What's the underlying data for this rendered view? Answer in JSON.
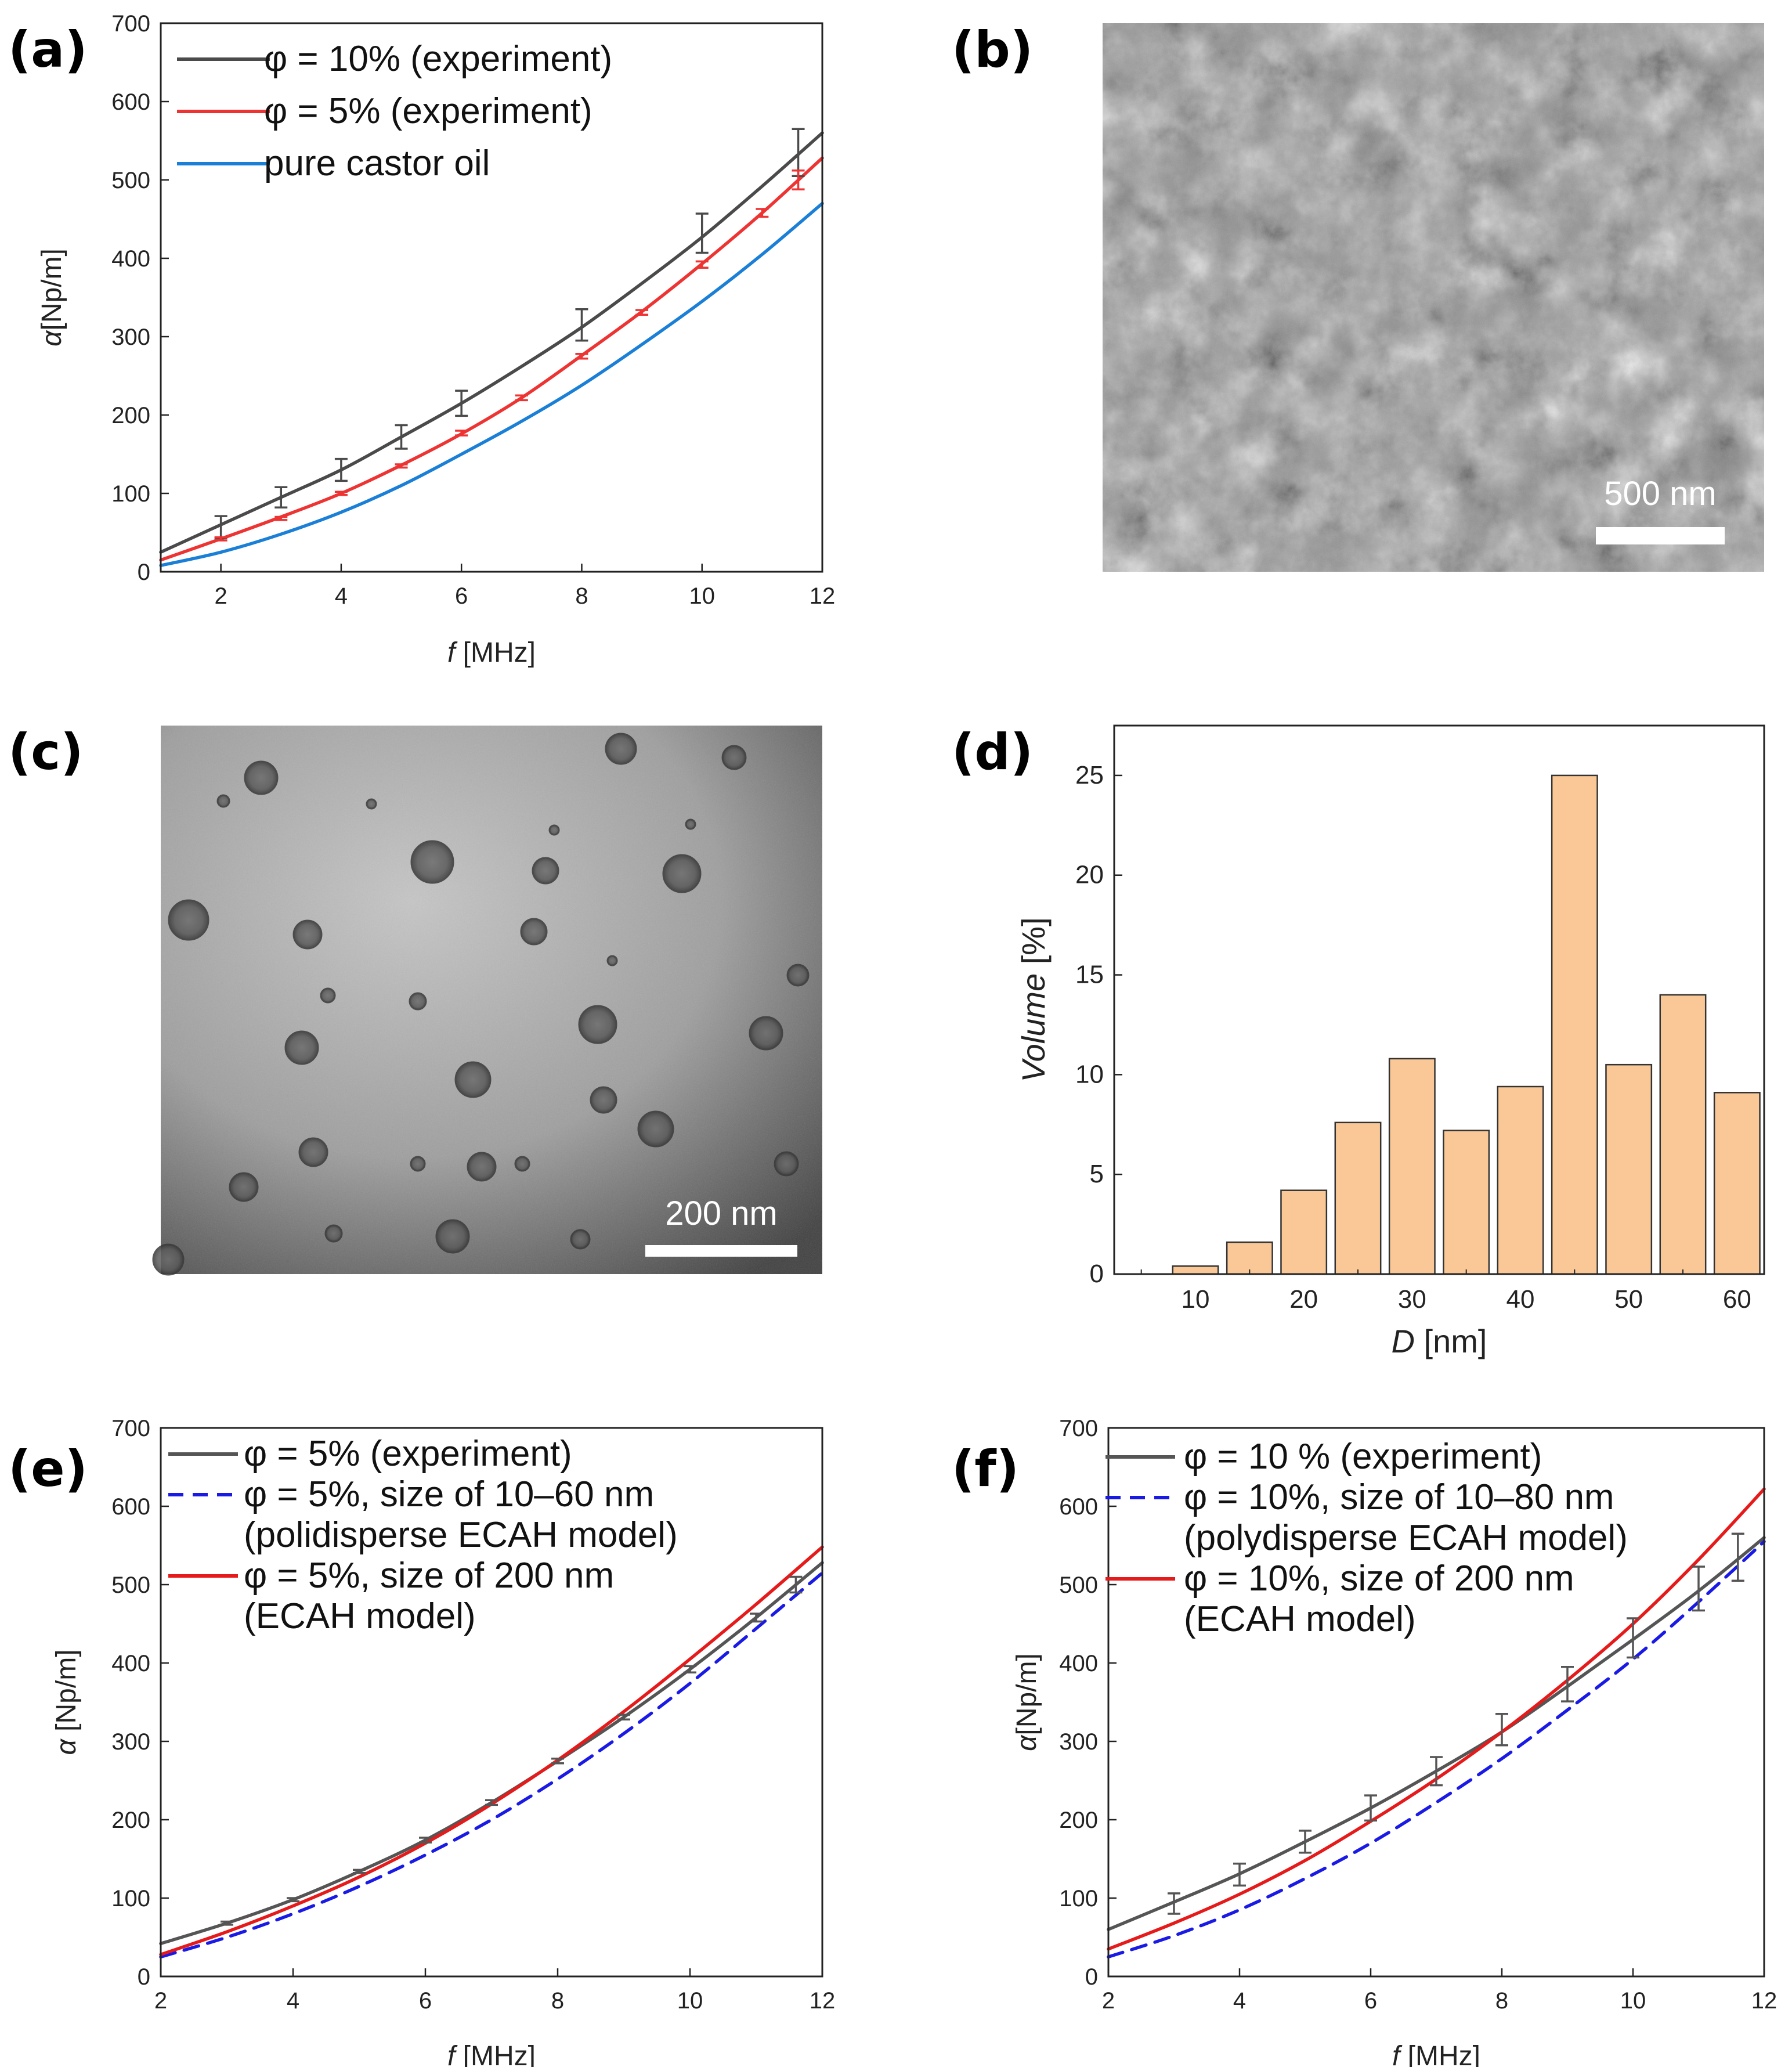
{
  "panel_labels": {
    "a": "(a)",
    "b": "(b)",
    "c": "(c)",
    "d": "(d)",
    "e": "(e)",
    "f": "(f)"
  },
  "images": {
    "b": {
      "scale_bar": "500 nm",
      "description_color": "#8a8a8a"
    },
    "c": {
      "scale_bar": "200 nm"
    }
  },
  "chart_data": [
    {
      "id": "a",
      "type": "line",
      "xlabel_italic": "f",
      "xlabel_rest": " [MHz]",
      "ylabel_italic": "α",
      "ylabel_rest": "[Np/m]",
      "xlim": [
        1,
        12
      ],
      "ylim": [
        0,
        700
      ],
      "xticks": [
        2,
        4,
        6,
        8,
        10,
        12
      ],
      "yticks": [
        0,
        100,
        200,
        300,
        400,
        500,
        600,
        700
      ],
      "legend": "top-left",
      "series": [
        {
          "name": "φ = 10% (experiment)",
          "color": "#4a4a4a",
          "dash": "",
          "marker": "line",
          "x": [
            1,
            2,
            3,
            4,
            5,
            6,
            7,
            8,
            9,
            10,
            11,
            12
          ],
          "y": [
            25,
            60,
            95,
            130,
            172,
            215,
            262,
            312,
            368,
            427,
            492,
            560
          ]
        },
        {
          "name": "φ = 5% (experiment)",
          "color": "#ee3333",
          "dash": "",
          "marker": "line",
          "x": [
            1,
            2,
            3,
            4,
            5,
            6,
            7,
            8,
            9,
            10,
            11,
            12
          ],
          "y": [
            15,
            42,
            70,
            100,
            136,
            176,
            222,
            276,
            332,
            393,
            458,
            528
          ]
        },
        {
          "name": "pure castor oil",
          "color": "#1a7fd6",
          "dash": "",
          "marker": "line",
          "x": [
            1,
            2,
            3,
            4,
            5,
            6,
            7,
            8,
            9,
            10,
            11,
            12
          ],
          "y": [
            8,
            25,
            48,
            76,
            110,
            150,
            192,
            238,
            290,
            345,
            405,
            470
          ]
        }
      ],
      "errorbars": [
        {
          "color": "#4a4a4a",
          "x": [
            2,
            3,
            4,
            5,
            6,
            8,
            10,
            11.6
          ],
          "y": [
            57,
            95,
            130,
            172,
            215,
            315,
            432,
            535
          ],
          "err": [
            14,
            13,
            14,
            15,
            16,
            20,
            25,
            30
          ]
        },
        {
          "color": "#ee3333",
          "x": [
            2,
            3,
            4,
            5,
            6,
            7,
            8,
            9,
            10,
            11,
            11.6
          ],
          "y": [
            42,
            68,
            100,
            135,
            177,
            222,
            275,
            331,
            392,
            458,
            500
          ],
          "err": [
            2,
            2,
            2,
            2,
            3,
            3,
            3,
            3,
            4,
            5,
            12
          ]
        }
      ]
    },
    {
      "id": "d",
      "type": "bar",
      "xlabel_italic": "D",
      "xlabel_rest": " [nm]",
      "ylabel_italic": "Volume",
      "ylabel_rest": " [%]",
      "xlim": [
        2.5,
        62.5
      ],
      "ylim": [
        0,
        27.5
      ],
      "xticks": [
        10,
        20,
        30,
        40,
        50,
        60
      ],
      "yticks": [
        0,
        5,
        10,
        15,
        20,
        25
      ],
      "bar_color": "#f9c896",
      "categories": [
        10,
        15,
        20,
        25,
        30,
        35,
        40,
        45,
        50,
        55,
        60
      ],
      "values": [
        0.4,
        1.6,
        4.2,
        7.6,
        10.8,
        7.2,
        9.4,
        25.0,
        10.5,
        14.0,
        9.1
      ]
    },
    {
      "id": "e",
      "type": "line",
      "xlabel_italic": "f",
      "xlabel_rest": " [MHz]",
      "ylabel_italic": "α",
      "ylabel_rest": " [Np/m]",
      "xlim": [
        2,
        12
      ],
      "ylim": [
        0,
        700
      ],
      "xticks": [
        2,
        4,
        6,
        8,
        10,
        12
      ],
      "yticks": [
        0,
        100,
        200,
        300,
        400,
        500,
        600,
        700
      ],
      "legend": "top-left",
      "legend_items": [
        {
          "text": "φ = 5% (experiment)",
          "color": "#555555",
          "dash": ""
        },
        {
          "text": "φ = 5%, size of 10–60 nm",
          "color": "#1a1ae6",
          "dash": "26,16"
        },
        {
          "text": "(polidisperse ECAH model)",
          "color": "",
          "dash": ""
        },
        {
          "text": "φ = 5%, size of 200 nm",
          "color": "#e61a1a",
          "dash": ""
        },
        {
          "text": "(ECAH model)",
          "color": "",
          "dash": ""
        }
      ],
      "series": [
        {
          "name": "φ = 5% (experiment)",
          "color": "#555555",
          "dash": "",
          "x": [
            2,
            3,
            4,
            5,
            6,
            7,
            8,
            9,
            10,
            11,
            12
          ],
          "y": [
            42,
            68,
            98,
            134,
            174,
            222,
            275,
            331,
            392,
            458,
            528
          ]
        },
        {
          "name": "φ = 5%, size of 10–60 nm",
          "color": "#1a1ae6",
          "dash": "26,16",
          "x": [
            2,
            3,
            4,
            5,
            6,
            7,
            8,
            9,
            10,
            11,
            12
          ],
          "y": [
            25,
            50,
            80,
            115,
            155,
            200,
            252,
            310,
            374,
            444,
            515
          ]
        },
        {
          "name": "φ = 5%, size of 200 nm",
          "color": "#e61a1a",
          "dash": "",
          "x": [
            2,
            3,
            4,
            5,
            6,
            7,
            8,
            9,
            10,
            11,
            12
          ],
          "y": [
            28,
            57,
            90,
            127,
            170,
            220,
            276,
            338,
            405,
            475,
            548
          ]
        }
      ],
      "errorbars": [
        {
          "color": "#555555",
          "x": [
            3,
            4,
            5,
            6,
            7,
            8,
            9,
            10,
            11,
            11.6
          ],
          "y": [
            68,
            98,
            134,
            174,
            222,
            275,
            331,
            392,
            458,
            500
          ],
          "err": [
            2,
            2,
            2,
            3,
            3,
            3,
            3,
            4,
            5,
            10
          ]
        }
      ]
    },
    {
      "id": "f",
      "type": "line",
      "xlabel_italic": "f",
      "xlabel_rest": " [MHz]",
      "ylabel_italic": "α",
      "ylabel_rest": "[Np/m]",
      "xlim": [
        2,
        12
      ],
      "ylim": [
        0,
        700
      ],
      "xticks": [
        2,
        4,
        6,
        8,
        10,
        12
      ],
      "yticks": [
        0,
        100,
        200,
        300,
        400,
        500,
        600,
        700
      ],
      "legend": "top-left",
      "legend_items": [
        {
          "text": "φ = 10 % (experiment)",
          "color": "#555555",
          "dash": ""
        },
        {
          "text": "φ = 10%, size of 10–80 nm",
          "color": "#1a1ae6",
          "dash": "26,16"
        },
        {
          "text": "(polydisperse ECAH model)",
          "color": "",
          "dash": ""
        },
        {
          "text": "φ = 10%, size of 200 nm",
          "color": "#e61a1a",
          "dash": ""
        },
        {
          "text": "(ECAH model)",
          "color": "",
          "dash": ""
        }
      ],
      "series": [
        {
          "name": "φ = 10 % (experiment)",
          "color": "#555555",
          "dash": "",
          "x": [
            2,
            3,
            4,
            5,
            6,
            7,
            8,
            9,
            10,
            11,
            12
          ],
          "y": [
            60,
            95,
            131,
            172,
            215,
            262,
            312,
            370,
            430,
            492,
            560
          ]
        },
        {
          "name": "φ = 10%, size of 10–80 nm",
          "color": "#1a1ae6",
          "dash": "26,16",
          "x": [
            2,
            3,
            4,
            5,
            6,
            7,
            8,
            9,
            10,
            11,
            12
          ],
          "y": [
            25,
            52,
            85,
            125,
            170,
            222,
            278,
            340,
            405,
            478,
            555
          ]
        },
        {
          "name": "φ = 10%, size of 200 nm",
          "color": "#e61a1a",
          "dash": "",
          "x": [
            2,
            3,
            4,
            5,
            6,
            7,
            8,
            9,
            10,
            11,
            12
          ],
          "y": [
            35,
            68,
            105,
            148,
            198,
            252,
            312,
            378,
            450,
            532,
            622
          ]
        }
      ],
      "errorbars": [
        {
          "color": "#555555",
          "x": [
            3,
            4,
            5,
            6,
            7,
            8,
            9,
            10,
            11,
            11.6
          ],
          "y": [
            93,
            130,
            172,
            215,
            262,
            315,
            373,
            432,
            495,
            535
          ],
          "err": [
            13,
            14,
            14,
            16,
            18,
            20,
            22,
            25,
            28,
            30
          ]
        }
      ]
    }
  ]
}
